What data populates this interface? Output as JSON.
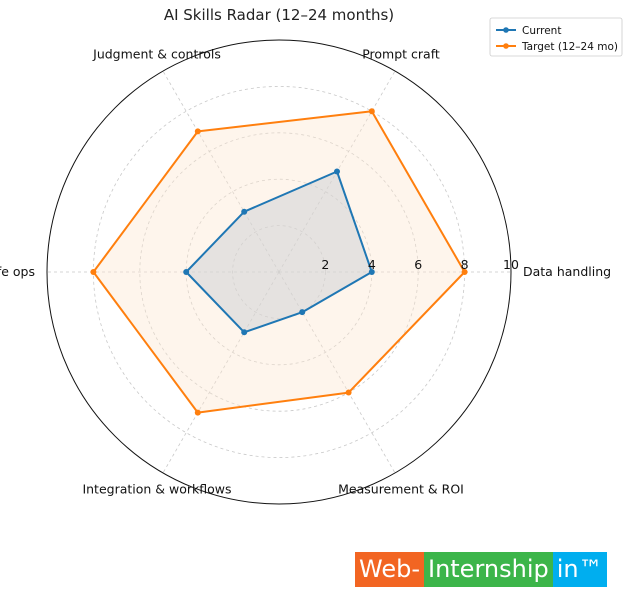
{
  "chart_data": {
    "type": "radar",
    "title": "AI Skills Radar (12–24 months)",
    "axes": [
      "Data handling",
      "Prompt craft",
      "Judgment & controls",
      "Safe ops",
      "Integration & workflows",
      "Measurement & ROI"
    ],
    "rlim": [
      0,
      10
    ],
    "rticks": [
      2,
      4,
      6,
      8,
      10
    ],
    "grid": true,
    "legend_position": "top-right",
    "series": [
      {
        "name": "Current",
        "values": [
          4,
          5,
          3,
          4,
          3,
          2
        ],
        "color": "#1f77b4",
        "fill": "#c8cdd3"
      },
      {
        "name": "Target (12–24 mo)",
        "values": [
          8,
          8,
          7,
          8,
          7,
          6
        ],
        "color": "#ff7f0e",
        "fill": "#fde7cf"
      }
    ]
  },
  "watermark": {
    "part1": "Web-",
    "part2": "Internship",
    "part3": "in™"
  }
}
